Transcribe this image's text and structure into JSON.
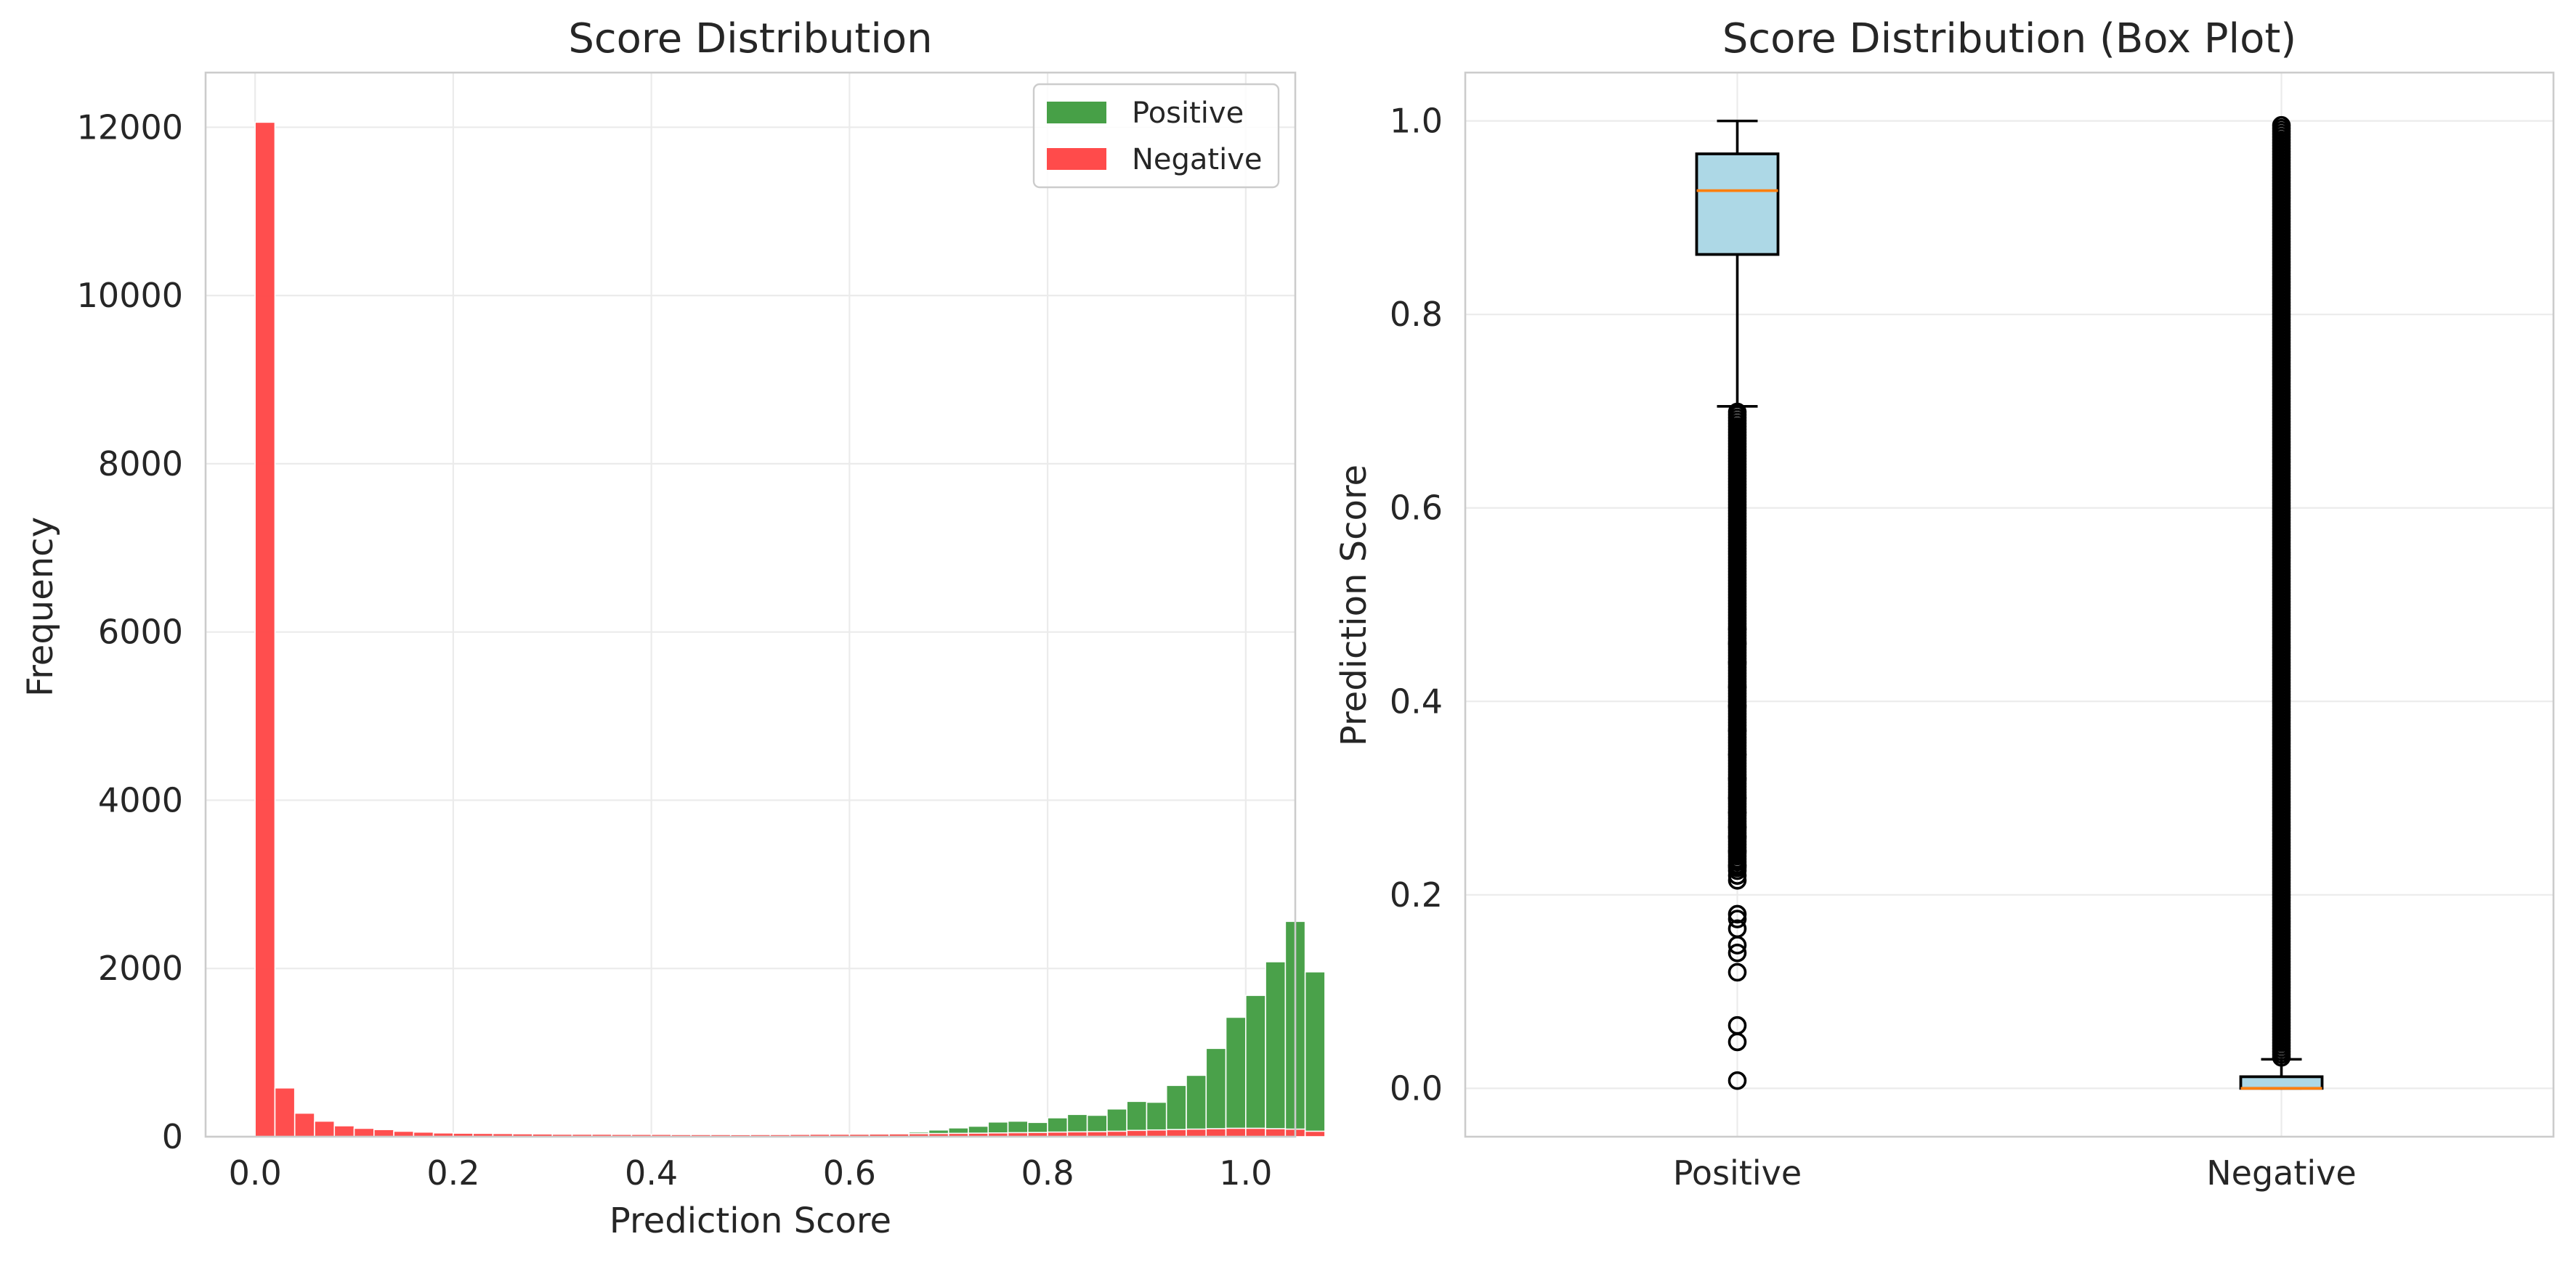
{
  "colors": {
    "positive": "#47a047",
    "negative": "#ff4b4b",
    "box_fill": "#add8e6",
    "median": "#ff7f0e",
    "grid": "#ebebeb"
  },
  "chart_data": [
    {
      "type": "bar",
      "subtype": "histogram",
      "title": "Score Distribution",
      "xlabel": "Prediction Score",
      "ylabel": "Frequency",
      "xlim": [
        -0.05,
        1.05
      ],
      "ylim": [
        0,
        12650
      ],
      "xticks": [
        0.0,
        0.2,
        0.4,
        0.6,
        0.8,
        1.0
      ],
      "xtick_labels": [
        "0.0",
        "0.2",
        "0.4",
        "0.6",
        "0.8",
        "1.0"
      ],
      "yticks": [
        0,
        2000,
        4000,
        6000,
        8000,
        10000,
        12000
      ],
      "ytick_labels": [
        "0",
        "2000",
        "4000",
        "6000",
        "8000",
        "10000",
        "12000"
      ],
      "grid": true,
      "legend_position": "top-right",
      "bin_start": 0.0,
      "bin_width": 0.02,
      "series": [
        {
          "name": "Positive",
          "values": [
            0,
            0,
            0,
            0,
            0,
            0,
            0,
            0,
            0,
            0,
            0,
            0,
            0,
            0,
            0,
            0,
            0,
            0,
            0,
            0,
            0,
            0,
            0,
            0,
            0,
            0,
            0,
            10,
            15,
            20,
            30,
            35,
            45,
            55,
            80,
            105,
            125,
            175,
            185,
            170,
            225,
            265,
            255,
            330,
            420,
            410,
            610,
            730,
            1050,
            1420,
            1680,
            2080,
            2560,
            1960
          ]
        },
        {
          "name": "Negative",
          "values": [
            12060,
            580,
            280,
            185,
            130,
            100,
            85,
            65,
            55,
            45,
            42,
            40,
            38,
            35,
            33,
            30,
            30,
            30,
            28,
            28,
            28,
            26,
            26,
            26,
            25,
            26,
            26,
            28,
            30,
            30,
            30,
            32,
            34,
            36,
            38,
            40,
            42,
            45,
            48,
            50,
            55,
            58,
            60,
            65,
            75,
            80,
            85,
            90,
            95,
            100,
            100,
            95,
            90,
            65
          ]
        }
      ]
    },
    {
      "type": "box",
      "title": "Score Distribution (Box Plot)",
      "xlabel": "",
      "ylabel": "Prediction Score",
      "ylim": [
        -0.05,
        1.05
      ],
      "yticks": [
        0.0,
        0.2,
        0.4,
        0.6,
        0.8,
        1.0
      ],
      "ytick_labels": [
        "0.0",
        "0.2",
        "0.4",
        "0.6",
        "0.8",
        "1.0"
      ],
      "grid": true,
      "categories": [
        "Positive",
        "Negative"
      ],
      "boxes": [
        {
          "name": "Positive",
          "whisker_low": 0.705,
          "q1": 0.862,
          "median": 0.928,
          "q3": 0.966,
          "whisker_high": 1.0,
          "outlier_band": [
            0.225,
            0.7
          ],
          "outliers": [
            0.008,
            0.048,
            0.065,
            0.12,
            0.14,
            0.148,
            0.165,
            0.175,
            0.18,
            0.215,
            0.22,
            0.23,
            0.245,
            0.26,
            0.27,
            0.285,
            0.3,
            0.32,
            0.345,
            0.37,
            0.395,
            0.415,
            0.44,
            0.46,
            0.475
          ]
        },
        {
          "name": "Negative",
          "whisker_low": 0.0,
          "q1": 0.0,
          "median": 0.0,
          "q3": 0.012,
          "whisker_high": 0.03,
          "outlier_band": [
            0.032,
            0.998
          ],
          "outliers": []
        }
      ]
    }
  ]
}
